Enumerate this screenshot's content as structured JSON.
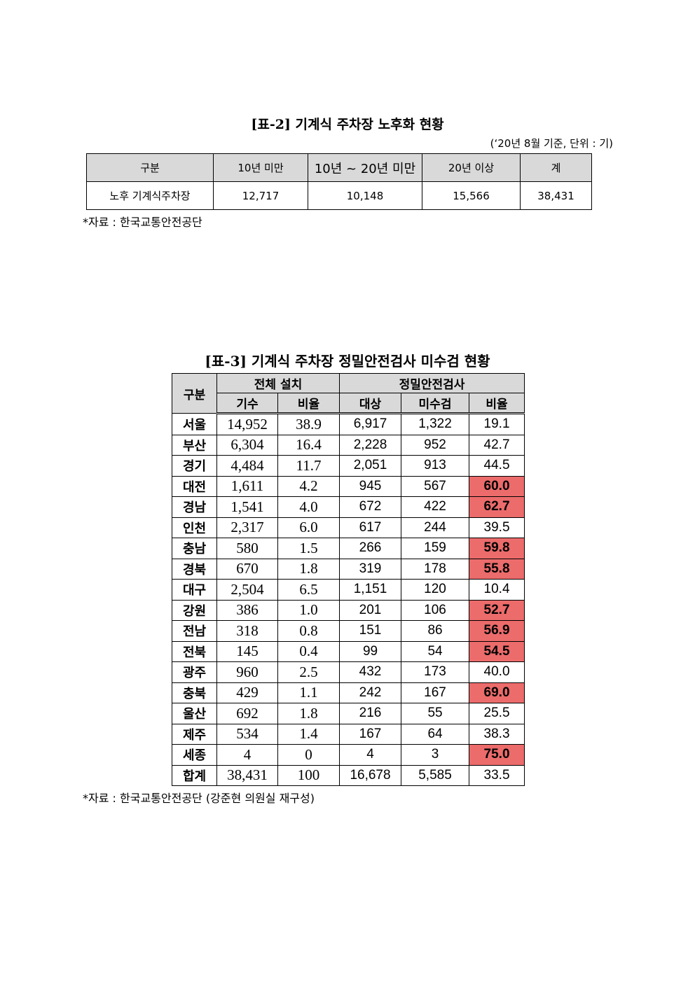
{
  "table2": {
    "title": "[표-2] 기계식 주차장 노후화 현황",
    "note": "(‘20년 8월 기준, 단위 : 기)",
    "header": [
      "구분",
      "10년 미만",
      "10년 ~ 20년 미만",
      "20년 이상",
      "계"
    ],
    "rows": [
      [
        "노후 기계식주차장",
        "12,717",
        "10,148",
        "15,566",
        "38,431"
      ]
    ],
    "source": "*자료 : 한국교통안전공단"
  },
  "table3": {
    "title": "[표-3] 기계식 주차장 정밀안전검사 미수검 현황",
    "header_top": [
      "구분",
      "전체 설치",
      "정밀안전검사"
    ],
    "header_sub": [
      "기수",
      "비율",
      "대상",
      "미수검",
      "비율"
    ],
    "rows": [
      [
        "서울",
        "14,952",
        "38.9",
        "6,917",
        "1,322",
        "19.1"
      ],
      [
        "부산",
        "6,304",
        "16.4",
        "2,228",
        "952",
        "42.7"
      ],
      [
        "경기",
        "4,484",
        "11.7",
        "2,051",
        "913",
        "44.5"
      ],
      [
        "대전",
        "1,611",
        "4.2",
        "945",
        "567",
        "60.0"
      ],
      [
        "경남",
        "1,541",
        "4.0",
        "672",
        "422",
        "62.7"
      ],
      [
        "인천",
        "2,317",
        "6.0",
        "617",
        "244",
        "39.5"
      ],
      [
        "충남",
        "580",
        "1.5",
        "266",
        "159",
        "59.8"
      ],
      [
        "경북",
        "670",
        "1.8",
        "319",
        "178",
        "55.8"
      ],
      [
        "대구",
        "2,504",
        "6.5",
        "1,151",
        "120",
        "10.4"
      ],
      [
        "강원",
        "386",
        "1.0",
        "201",
        "106",
        "52.7"
      ],
      [
        "전남",
        "318",
        "0.8",
        "151",
        "86",
        "56.9"
      ],
      [
        "전북",
        "145",
        "0.4",
        "99",
        "54",
        "54.5"
      ],
      [
        "광주",
        "960",
        "2.5",
        "432",
        "173",
        "40.0"
      ],
      [
        "충북",
        "429",
        "1.1",
        "242",
        "167",
        "69.0"
      ],
      [
        "울산",
        "692",
        "1.8",
        "216",
        "55",
        "25.5"
      ],
      [
        "제주",
        "534",
        "1.4",
        "167",
        "64",
        "38.3"
      ],
      [
        "세종",
        "4",
        "0",
        "4",
        "3",
        "75.0"
      ],
      [
        "합계",
        "38,431",
        "100",
        "16,678",
        "5,585",
        "33.5"
      ]
    ],
    "highlight": {
      "color": "#ec6b6b",
      "rows": [
        3,
        4,
        6,
        7,
        9,
        10,
        11,
        13,
        16
      ]
    },
    "source": "*자료 : 한국교통안전공단 (강준현 의원실 재구성)"
  }
}
